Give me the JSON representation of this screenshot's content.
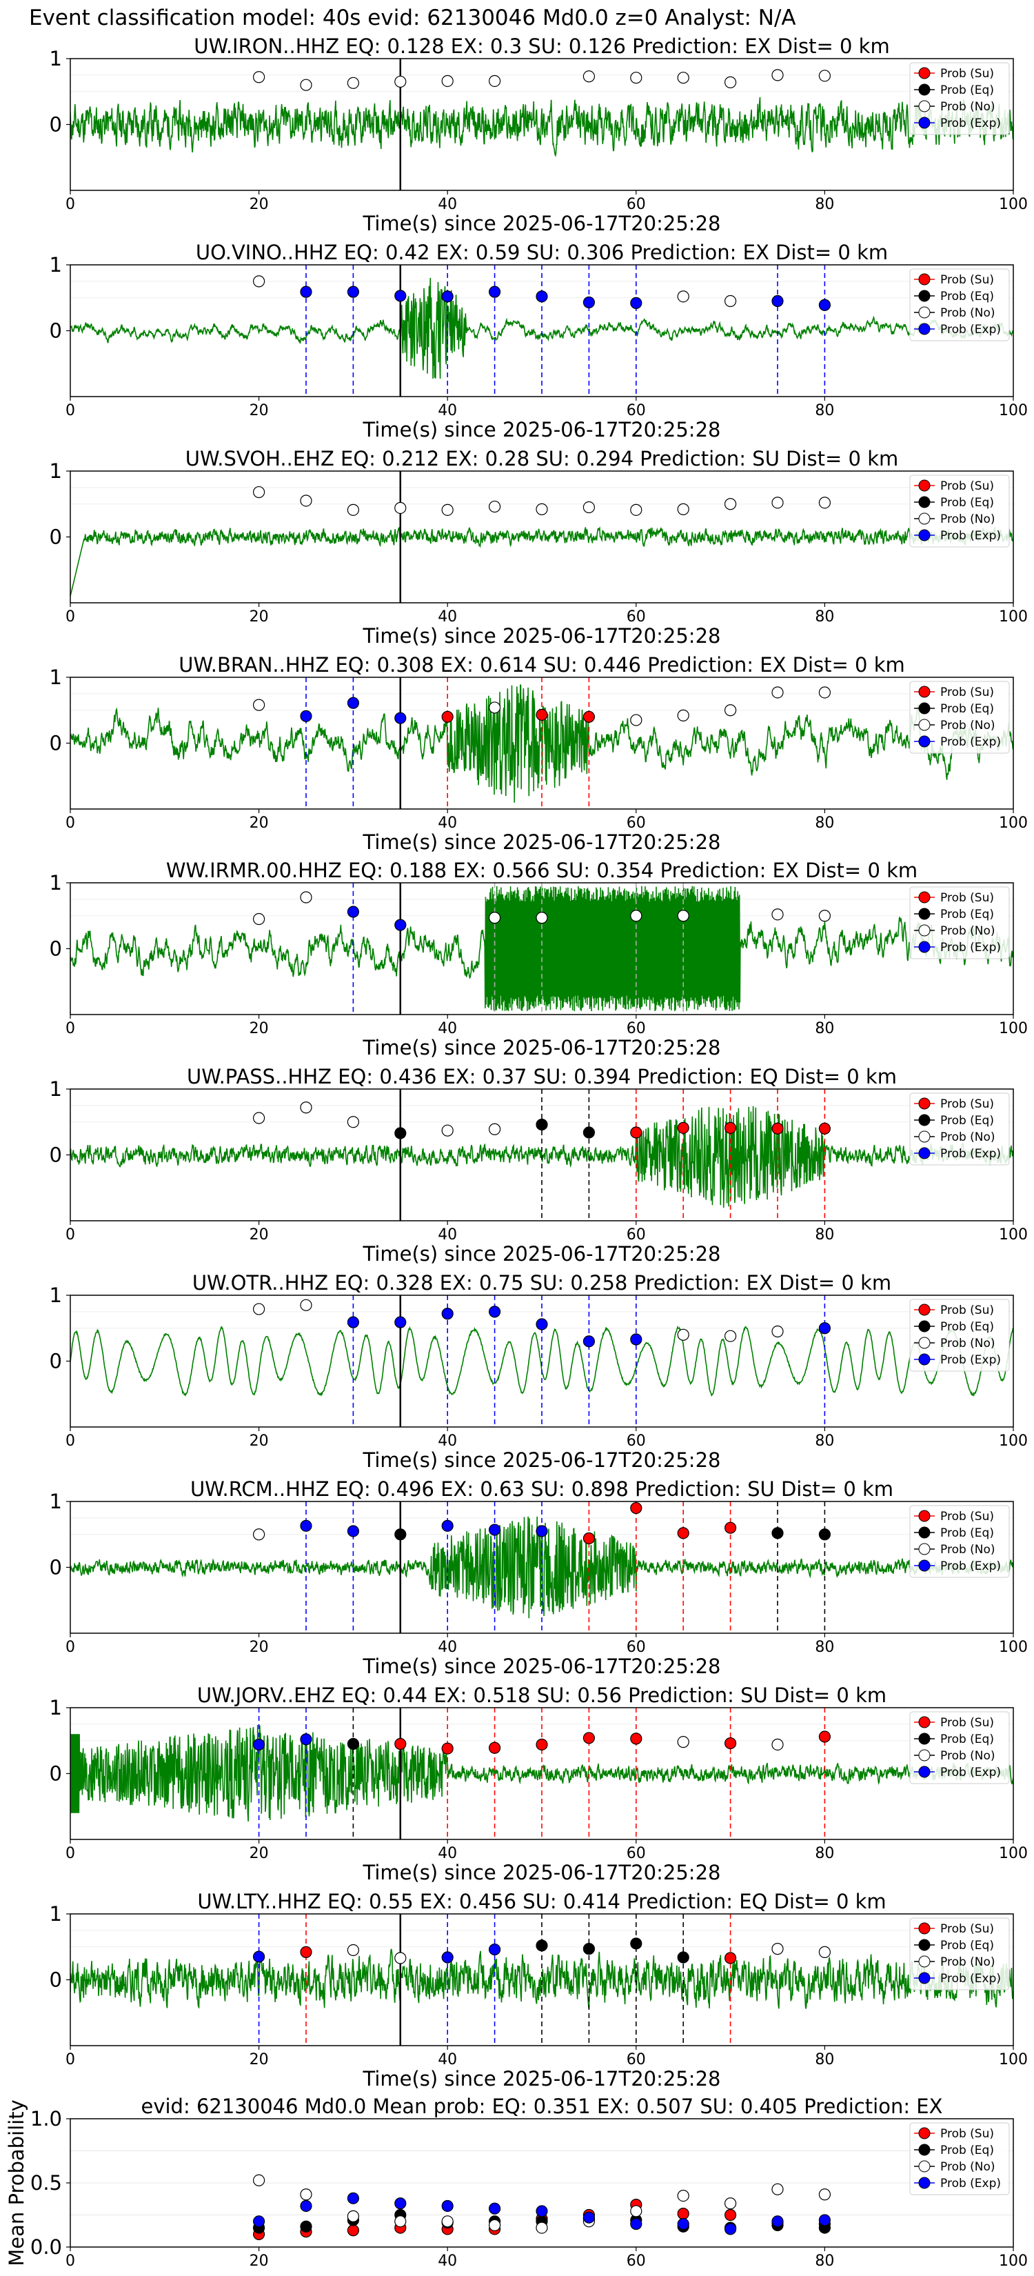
{
  "figure": {
    "suptitle": "Event classification model: 40s evid: 62130046 Md0.0 z=0 Analyst: N/A"
  },
  "legend_labels": [
    "Prob (Su)",
    "Prob (Eq)",
    "Prob (No)",
    "Prob (Exp)"
  ],
  "colors": {
    "su": "#ff0000",
    "eq": "#000000",
    "no": "#ffffff",
    "exp": "#0000ff",
    "waveform": "#008000",
    "event_line": "#000000"
  },
  "x_axis": {
    "label": "Time(s) since 2025-06-17T20:25:28",
    "ticks": [
      0,
      20,
      40,
      60,
      80,
      100
    ],
    "xlim": [
      0,
      100
    ]
  },
  "chart_data": [
    {
      "type": "scatter",
      "title": "UW.IRON..HHZ   EQ: 0.128  EX: 0.3  SU: 0.126   Prediction: EX    Dist= 0 km",
      "ylim": [
        -1,
        1
      ],
      "yticks": [
        0,
        1
      ],
      "x": [
        20,
        25,
        30,
        35,
        40,
        45,
        55,
        60,
        65,
        70,
        75,
        80
      ],
      "points": [
        "no",
        "no",
        "no",
        "no",
        "no",
        "no",
        "no",
        "no",
        "no",
        "no",
        "no",
        "no"
      ],
      "values": [
        0.72,
        0.6,
        0.63,
        0.65,
        0.66,
        0.66,
        0.73,
        0.71,
        0.71,
        0.64,
        0.75,
        0.74
      ],
      "vlines": [],
      "waveform": {
        "amp": 0.52,
        "style": "noise",
        "seed": 11
      }
    },
    {
      "type": "scatter",
      "title": "UO.VINO..HHZ   EQ: 0.42  EX: 0.59  SU: 0.306   Prediction: EX    Dist= 0 km",
      "ylim": [
        -1,
        1
      ],
      "yticks": [
        0,
        1
      ],
      "x": [
        20,
        25,
        30,
        35,
        40,
        45,
        50,
        55,
        60,
        65,
        70,
        75,
        80
      ],
      "points": [
        "no",
        "exp",
        "exp",
        "exp",
        "exp",
        "exp",
        "exp",
        "exp",
        "exp",
        "no",
        "no",
        "exp",
        "exp"
      ],
      "values": [
        0.75,
        0.59,
        0.59,
        0.53,
        0.52,
        0.59,
        0.52,
        0.43,
        0.42,
        0.52,
        0.45,
        0.45,
        0.39
      ],
      "vlines": [
        {
          "x": 25,
          "cls": "exp"
        },
        {
          "x": 30,
          "cls": "exp"
        },
        {
          "x": 40,
          "cls": "exp"
        },
        {
          "x": 45,
          "cls": "exp"
        },
        {
          "x": 50,
          "cls": "exp"
        },
        {
          "x": 55,
          "cls": "exp"
        },
        {
          "x": 60,
          "cls": "exp"
        },
        {
          "x": 75,
          "cls": "exp"
        },
        {
          "x": 80,
          "cls": "exp"
        }
      ],
      "waveform": {
        "amp": 0.12,
        "style": "smooth",
        "seed": 23,
        "burst": [
          35,
          42,
          0.85
        ]
      }
    },
    {
      "type": "scatter",
      "title": "UW.SVOH..EHZ   EQ: 0.212  EX: 0.28  SU: 0.294   Prediction: SU    Dist= 0 km",
      "ylim": [
        -1,
        1
      ],
      "yticks": [
        0,
        1
      ],
      "x": [
        20,
        25,
        30,
        35,
        40,
        45,
        50,
        55,
        60,
        65,
        70,
        75,
        80
      ],
      "points": [
        "no",
        "no",
        "no",
        "no",
        "no",
        "no",
        "no",
        "no",
        "no",
        "no",
        "no",
        "no",
        "no"
      ],
      "values": [
        0.68,
        0.55,
        0.41,
        0.44,
        0.41,
        0.46,
        0.42,
        0.45,
        0.41,
        0.42,
        0.5,
        0.52,
        0.52
      ],
      "vlines": [],
      "waveform": {
        "amp": 0.18,
        "style": "noise",
        "seed": 37,
        "start_dip": true
      }
    },
    {
      "type": "scatter",
      "title": "UW.BRAN..HHZ   EQ: 0.308  EX: 0.614  SU: 0.446   Prediction: EX    Dist= 0 km",
      "ylim": [
        -1,
        1
      ],
      "yticks": [
        0,
        1
      ],
      "x": [
        20,
        25,
        30,
        35,
        40,
        45,
        50,
        55,
        60,
        65,
        70,
        75,
        80
      ],
      "points": [
        "no",
        "exp",
        "exp",
        "exp",
        "su",
        "no",
        "su",
        "su",
        "no",
        "no",
        "no",
        "no",
        "no"
      ],
      "values": [
        0.58,
        0.41,
        0.61,
        0.38,
        0.4,
        0.54,
        0.43,
        0.4,
        0.35,
        0.42,
        0.5,
        0.77,
        0.77
      ],
      "vlines": [
        {
          "x": 25,
          "cls": "exp"
        },
        {
          "x": 30,
          "cls": "exp"
        },
        {
          "x": 40,
          "cls": "su"
        },
        {
          "x": 50,
          "cls": "su"
        },
        {
          "x": 55,
          "cls": "su"
        }
      ],
      "waveform": {
        "amp": 0.3,
        "style": "smooth",
        "seed": 41,
        "burst": [
          40,
          55,
          0.95
        ]
      }
    },
    {
      "type": "scatter",
      "title": "WW.IRMR.00.HHZ   EQ: 0.188  EX: 0.566  SU: 0.354   Prediction: EX    Dist= 0 km",
      "ylim": [
        -1,
        1
      ],
      "yticks": [
        0,
        1
      ],
      "x": [
        20,
        25,
        30,
        35,
        45,
        50,
        60,
        65,
        75,
        80
      ],
      "points": [
        "no",
        "no",
        "exp",
        "exp",
        "no",
        "no",
        "no",
        "no",
        "no",
        "no"
      ],
      "values": [
        0.45,
        0.78,
        0.56,
        0.36,
        0.47,
        0.47,
        0.5,
        0.5,
        0.52,
        0.5
      ],
      "vlines": [
        {
          "x": 30,
          "cls": "exp"
        },
        {
          "x": 45,
          "cls": "no"
        },
        {
          "x": 50,
          "cls": "no"
        },
        {
          "x": 60,
          "cls": "no"
        },
        {
          "x": 65,
          "cls": "no"
        }
      ],
      "waveform": {
        "amp": 0.3,
        "style": "smooth",
        "seed": 53,
        "block": [
          44,
          71,
          0.95
        ]
      }
    },
    {
      "type": "scatter",
      "title": "UW.PASS..HHZ   EQ: 0.436  EX: 0.37  SU: 0.394   Prediction: EQ    Dist= 0 km",
      "ylim": [
        -1,
        1
      ],
      "yticks": [
        0,
        1
      ],
      "x": [
        20,
        25,
        30,
        35,
        40,
        45,
        50,
        55,
        60,
        65,
        70,
        75,
        80
      ],
      "points": [
        "no",
        "no",
        "no",
        "eq",
        "no",
        "no",
        "eq",
        "eq",
        "su",
        "su",
        "su",
        "su",
        "su"
      ],
      "values": [
        0.56,
        0.72,
        0.5,
        0.33,
        0.37,
        0.39,
        0.46,
        0.34,
        0.34,
        0.41,
        0.41,
        0.4,
        0.4
      ],
      "vlines": [
        {
          "x": 50,
          "cls": "eq"
        },
        {
          "x": 55,
          "cls": "eq"
        },
        {
          "x": 60,
          "cls": "su"
        },
        {
          "x": 65,
          "cls": "su"
        },
        {
          "x": 70,
          "cls": "su"
        },
        {
          "x": 75,
          "cls": "su"
        },
        {
          "x": 80,
          "cls": "su"
        }
      ],
      "waveform": {
        "amp": 0.22,
        "style": "noise",
        "seed": 67,
        "burst": [
          60,
          80,
          0.85
        ]
      }
    },
    {
      "type": "scatter",
      "title": "UW.OTR..HHZ   EQ: 0.328  EX: 0.75  SU: 0.258   Prediction: EX    Dist= 0 km",
      "ylim": [
        -1,
        1
      ],
      "yticks": [
        0,
        1
      ],
      "x": [
        20,
        25,
        30,
        35,
        40,
        45,
        50,
        55,
        60,
        65,
        70,
        75,
        80
      ],
      "points": [
        "no",
        "no",
        "exp",
        "exp",
        "exp",
        "exp",
        "exp",
        "exp",
        "exp",
        "no",
        "no",
        "no",
        "exp"
      ],
      "values": [
        0.79,
        0.85,
        0.59,
        0.59,
        0.72,
        0.75,
        0.56,
        0.3,
        0.33,
        0.4,
        0.38,
        0.45,
        0.5
      ],
      "vlines": [
        {
          "x": 30,
          "cls": "exp"
        },
        {
          "x": 40,
          "cls": "exp"
        },
        {
          "x": 45,
          "cls": "exp"
        },
        {
          "x": 50,
          "cls": "exp"
        },
        {
          "x": 55,
          "cls": "exp"
        },
        {
          "x": 60,
          "cls": "exp"
        },
        {
          "x": 80,
          "cls": "exp"
        }
      ],
      "waveform": {
        "amp": 0.6,
        "style": "osc",
        "seed": 71
      }
    },
    {
      "type": "scatter",
      "title": "UW.RCM..HHZ   EQ: 0.496  EX: 0.63  SU: 0.898   Prediction: SU    Dist= 0 km",
      "ylim": [
        -1,
        1
      ],
      "yticks": [
        0,
        1
      ],
      "x": [
        20,
        25,
        30,
        35,
        40,
        45,
        50,
        55,
        60,
        65,
        70,
        75,
        80
      ],
      "points": [
        "no",
        "exp",
        "exp",
        "eq",
        "exp",
        "exp",
        "exp",
        "su",
        "su",
        "su",
        "su",
        "eq",
        "eq"
      ],
      "values": [
        0.5,
        0.63,
        0.55,
        0.5,
        0.63,
        0.57,
        0.55,
        0.44,
        0.9,
        0.52,
        0.6,
        0.52,
        0.5
      ],
      "vlines": [
        {
          "x": 25,
          "cls": "exp"
        },
        {
          "x": 30,
          "cls": "exp"
        },
        {
          "x": 40,
          "cls": "exp"
        },
        {
          "x": 45,
          "cls": "exp"
        },
        {
          "x": 50,
          "cls": "exp"
        },
        {
          "x": 55,
          "cls": "su"
        },
        {
          "x": 60,
          "cls": "su"
        },
        {
          "x": 65,
          "cls": "su"
        },
        {
          "x": 70,
          "cls": "su"
        },
        {
          "x": 75,
          "cls": "eq"
        },
        {
          "x": 80,
          "cls": "eq"
        }
      ],
      "waveform": {
        "amp": 0.18,
        "style": "noise",
        "seed": 83,
        "burst": [
          38,
          60,
          0.8
        ]
      }
    },
    {
      "type": "scatter",
      "title": "UW.JORV..EHZ   EQ: 0.44  EX: 0.518  SU: 0.56   Prediction: SU    Dist= 0 km",
      "ylim": [
        -1,
        1
      ],
      "yticks": [
        0,
        1
      ],
      "x": [
        20,
        25,
        30,
        35,
        40,
        45,
        50,
        55,
        60,
        65,
        70,
        75,
        80
      ],
      "points": [
        "exp",
        "exp",
        "eq",
        "su",
        "su",
        "su",
        "su",
        "su",
        "su",
        "no",
        "su",
        "no",
        "su"
      ],
      "values": [
        0.44,
        0.52,
        0.45,
        0.45,
        0.38,
        0.39,
        0.44,
        0.54,
        0.53,
        0.48,
        0.46,
        0.44,
        0.56
      ],
      "vlines": [
        {
          "x": 20,
          "cls": "exp"
        },
        {
          "x": 25,
          "cls": "exp"
        },
        {
          "x": 30,
          "cls": "eq"
        },
        {
          "x": 35,
          "cls": "su"
        },
        {
          "x": 40,
          "cls": "su"
        },
        {
          "x": 45,
          "cls": "su"
        },
        {
          "x": 50,
          "cls": "su"
        },
        {
          "x": 55,
          "cls": "su"
        },
        {
          "x": 60,
          "cls": "su"
        },
        {
          "x": 70,
          "cls": "su"
        },
        {
          "x": 80,
          "cls": "su"
        }
      ],
      "waveform": {
        "amp": 0.2,
        "style": "noise",
        "seed": 97,
        "burst": [
          0,
          40,
          0.75
        ],
        "start_spike": true
      }
    },
    {
      "type": "scatter",
      "title": "UW.LTY..HHZ   EQ: 0.55  EX: 0.456  SU: 0.414   Prediction: EQ    Dist= 0 km",
      "ylim": [
        -1,
        1
      ],
      "yticks": [
        0,
        1
      ],
      "x": [
        20,
        25,
        30,
        35,
        40,
        45,
        50,
        55,
        60,
        65,
        70,
        75,
        80
      ],
      "points": [
        "exp",
        "su",
        "no",
        "no",
        "exp",
        "exp",
        "eq",
        "eq",
        "eq",
        "eq",
        "su",
        "no",
        "no"
      ],
      "values": [
        0.35,
        0.42,
        0.45,
        0.33,
        0.34,
        0.46,
        0.52,
        0.47,
        0.55,
        0.34,
        0.33,
        0.47,
        0.42
      ],
      "vlines": [
        {
          "x": 20,
          "cls": "exp"
        },
        {
          "x": 25,
          "cls": "su"
        },
        {
          "x": 40,
          "cls": "exp"
        },
        {
          "x": 45,
          "cls": "exp"
        },
        {
          "x": 50,
          "cls": "eq"
        },
        {
          "x": 55,
          "cls": "eq"
        },
        {
          "x": 60,
          "cls": "eq"
        },
        {
          "x": 65,
          "cls": "eq"
        },
        {
          "x": 70,
          "cls": "su"
        }
      ],
      "waveform": {
        "amp": 0.55,
        "style": "noise",
        "seed": 101
      }
    },
    {
      "type": "line",
      "title": "evid: 62130046  Md0.0   Mean prob:   EQ: 0.351  EX: 0.507  SU: 0.405   Prediction: EX",
      "ylabel": "Mean Probability",
      "ylim": [
        0,
        1
      ],
      "yticks": [
        0.0,
        0.5,
        1.0
      ],
      "x": [
        20,
        25,
        30,
        35,
        40,
        45,
        50,
        55,
        60,
        65,
        70,
        75,
        80
      ],
      "series": [
        {
          "cls": "su",
          "values": [
            0.1,
            0.12,
            0.13,
            0.15,
            0.14,
            0.14,
            0.22,
            0.25,
            0.33,
            0.26,
            0.25,
            0.19,
            0.18
          ]
        },
        {
          "cls": "eq",
          "values": [
            0.15,
            0.16,
            0.21,
            0.25,
            0.19,
            0.2,
            0.2,
            0.22,
            0.21,
            0.16,
            0.15,
            0.17,
            0.15
          ]
        },
        {
          "cls": "no",
          "values": [
            0.52,
            0.41,
            0.24,
            0.2,
            0.2,
            0.17,
            0.15,
            0.2,
            0.28,
            0.4,
            0.34,
            0.45,
            0.41
          ]
        },
        {
          "cls": "exp",
          "values": [
            0.2,
            0.32,
            0.38,
            0.34,
            0.32,
            0.3,
            0.28,
            0.23,
            0.18,
            0.18,
            0.14,
            0.2,
            0.21
          ]
        }
      ]
    }
  ]
}
